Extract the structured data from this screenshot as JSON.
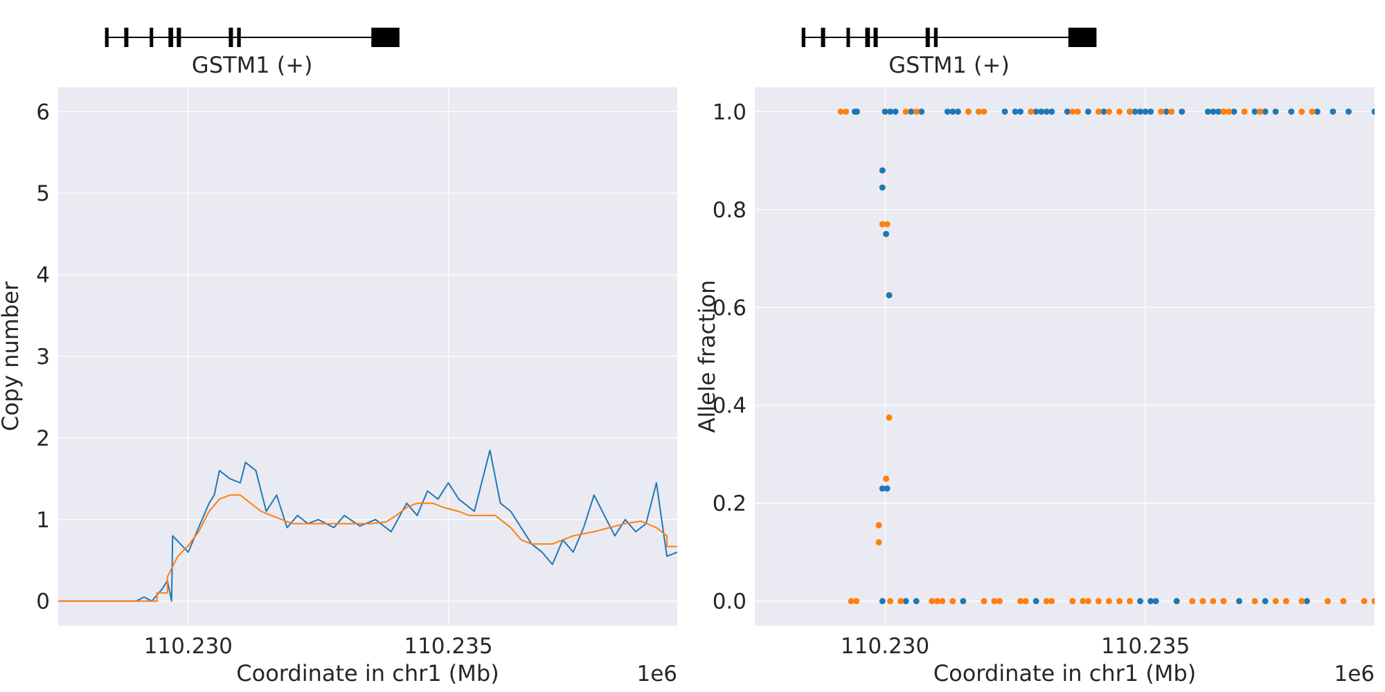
{
  "chart_data": [
    {
      "type": "line",
      "gene_track": {
        "label": "GSTM1 (+)",
        "exons": [
          [
            110.2284,
            110.22847
          ],
          [
            110.22877,
            110.22885
          ],
          [
            110.22926,
            110.22931
          ],
          [
            110.22962,
            110.22971
          ],
          [
            110.22978,
            110.22986
          ],
          [
            110.23078,
            110.23086
          ],
          [
            110.23094,
            110.23101
          ],
          [
            110.23352,
            110.23406
          ]
        ],
        "span": [
          110.2284,
          110.23406
        ]
      },
      "xlabel": "Coordinate in chr1 (Mb)",
      "ylabel": "Copy number",
      "offset_label": "1e6",
      "xlim": [
        110.2275,
        110.2394
      ],
      "ylim": [
        -0.3,
        6.3
      ],
      "xticks": [
        {
          "value": 110.23,
          "label": "110.230"
        },
        {
          "value": 110.235,
          "label": "110.235"
        }
      ],
      "yticks": [
        {
          "value": 0,
          "label": "0"
        },
        {
          "value": 1,
          "label": "1"
        },
        {
          "value": 2,
          "label": "2"
        },
        {
          "value": 3,
          "label": "3"
        },
        {
          "value": 4,
          "label": "4"
        },
        {
          "value": 5,
          "label": "5"
        },
        {
          "value": 6,
          "label": "6"
        }
      ],
      "grid": true,
      "series": [
        {
          "color": "#1f77b4",
          "points": [
            [
              110.2275,
              0
            ],
            [
              110.229,
              0
            ],
            [
              110.22915,
              0.05
            ],
            [
              110.2293,
              0
            ],
            [
              110.2295,
              0.15
            ],
            [
              110.2296,
              0.25
            ],
            [
              110.22968,
              0
            ],
            [
              110.2297,
              0.8
            ],
            [
              110.22985,
              0.7
            ],
            [
              110.23,
              0.6
            ],
            [
              110.2302,
              0.9
            ],
            [
              110.2304,
              1.2
            ],
            [
              110.2305,
              1.3
            ],
            [
              110.2306,
              1.6
            ],
            [
              110.2308,
              1.5
            ],
            [
              110.231,
              1.45
            ],
            [
              110.2311,
              1.7
            ],
            [
              110.2313,
              1.6
            ],
            [
              110.2315,
              1.1
            ],
            [
              110.2317,
              1.3
            ],
            [
              110.2319,
              0.9
            ],
            [
              110.2321,
              1.05
            ],
            [
              110.2323,
              0.95
            ],
            [
              110.2325,
              1.0
            ],
            [
              110.2328,
              0.9
            ],
            [
              110.233,
              1.05
            ],
            [
              110.2333,
              0.92
            ],
            [
              110.2336,
              1.0
            ],
            [
              110.2339,
              0.85
            ],
            [
              110.2342,
              1.2
            ],
            [
              110.2344,
              1.05
            ],
            [
              110.2346,
              1.35
            ],
            [
              110.2348,
              1.25
            ],
            [
              110.235,
              1.45
            ],
            [
              110.2352,
              1.25
            ],
            [
              110.2355,
              1.1
            ],
            [
              110.2357,
              1.6
            ],
            [
              110.2358,
              1.85
            ],
            [
              110.236,
              1.2
            ],
            [
              110.2362,
              1.1
            ],
            [
              110.2364,
              0.9
            ],
            [
              110.2366,
              0.7
            ],
            [
              110.2368,
              0.6
            ],
            [
              110.237,
              0.45
            ],
            [
              110.2372,
              0.75
            ],
            [
              110.2374,
              0.6
            ],
            [
              110.2376,
              0.9
            ],
            [
              110.2378,
              1.3
            ],
            [
              110.238,
              1.05
            ],
            [
              110.2382,
              0.8
            ],
            [
              110.2384,
              1.0
            ],
            [
              110.2386,
              0.85
            ],
            [
              110.2388,
              0.95
            ],
            [
              110.239,
              1.45
            ],
            [
              110.2392,
              0.55
            ],
            [
              110.2394,
              0.6
            ]
          ]
        },
        {
          "color": "#ff7f0e",
          "points": [
            [
              110.2275,
              0
            ],
            [
              110.2294,
              0
            ],
            [
              110.2294,
              0.1
            ],
            [
              110.2296,
              0.1
            ],
            [
              110.2296,
              0.3
            ],
            [
              110.2298,
              0.55
            ],
            [
              110.23,
              0.68
            ],
            [
              110.2302,
              0.85
            ],
            [
              110.2304,
              1.1
            ],
            [
              110.2306,
              1.25
            ],
            [
              110.2308,
              1.3
            ],
            [
              110.231,
              1.3
            ],
            [
              110.2312,
              1.2
            ],
            [
              110.2314,
              1.1
            ],
            [
              110.2316,
              1.05
            ],
            [
              110.2318,
              1.0
            ],
            [
              110.232,
              0.95
            ],
            [
              110.2335,
              0.95
            ],
            [
              110.2338,
              0.97
            ],
            [
              110.234,
              1.05
            ],
            [
              110.2342,
              1.15
            ],
            [
              110.2344,
              1.2
            ],
            [
              110.2347,
              1.2
            ],
            [
              110.2349,
              1.15
            ],
            [
              110.2352,
              1.1
            ],
            [
              110.2354,
              1.05
            ],
            [
              110.2359,
              1.05
            ],
            [
              110.2362,
              0.9
            ],
            [
              110.2364,
              0.75
            ],
            [
              110.2366,
              0.7
            ],
            [
              110.237,
              0.7
            ],
            [
              110.2372,
              0.75
            ],
            [
              110.2374,
              0.8
            ],
            [
              110.2378,
              0.85
            ],
            [
              110.2381,
              0.9
            ],
            [
              110.2384,
              0.95
            ],
            [
              110.2387,
              0.98
            ],
            [
              110.239,
              0.9
            ],
            [
              110.2392,
              0.8
            ],
            [
              110.2392,
              0.67
            ],
            [
              110.2394,
              0.67
            ]
          ]
        }
      ]
    },
    {
      "type": "scatter",
      "gene_track": {
        "label": "GSTM1 (+)",
        "exons": [
          [
            110.2284,
            110.22847
          ],
          [
            110.22877,
            110.22885
          ],
          [
            110.22926,
            110.22931
          ],
          [
            110.22962,
            110.22971
          ],
          [
            110.22978,
            110.22986
          ],
          [
            110.23078,
            110.23086
          ],
          [
            110.23094,
            110.23101
          ],
          [
            110.23352,
            110.23406
          ]
        ],
        "span": [
          110.2284,
          110.23406
        ]
      },
      "xlabel": "Coordinate in chr1 (Mb)",
      "ylabel": "Allele fraction",
      "offset_label": "1e6",
      "xlim": [
        110.2275,
        110.2394
      ],
      "ylim": [
        -0.05,
        1.05
      ],
      "xticks": [
        {
          "value": 110.23,
          "label": "110.230"
        },
        {
          "value": 110.235,
          "label": "110.235"
        }
      ],
      "yticks": [
        {
          "value": 0.0,
          "label": "0.0"
        },
        {
          "value": 0.2,
          "label": "0.2"
        },
        {
          "value": 0.4,
          "label": "0.4"
        },
        {
          "value": 0.6,
          "label": "0.6"
        },
        {
          "value": 0.8,
          "label": "0.8"
        },
        {
          "value": 1.0,
          "label": "1.0"
        }
      ],
      "grid": true,
      "series": [
        {
          "color": "#1f77b4",
          "points": [
            [
              110.22942,
              1
            ],
            [
              110.22946,
              1
            ],
            [
              110.23,
              1
            ],
            [
              110.2301,
              1
            ],
            [
              110.2302,
              1
            ],
            [
              110.2305,
              1
            ],
            [
              110.2307,
              1
            ],
            [
              110.2312,
              1
            ],
            [
              110.2313,
              1
            ],
            [
              110.2314,
              1
            ],
            [
              110.2316,
              1
            ],
            [
              110.2318,
              1
            ],
            [
              110.2323,
              1
            ],
            [
              110.2325,
              1
            ],
            [
              110.2326,
              1
            ],
            [
              110.2329,
              1
            ],
            [
              110.233,
              1
            ],
            [
              110.2331,
              1
            ],
            [
              110.2332,
              1
            ],
            [
              110.2335,
              1
            ],
            [
              110.2339,
              1
            ],
            [
              110.2342,
              1
            ],
            [
              110.2347,
              1
            ],
            [
              110.2348,
              1
            ],
            [
              110.2349,
              1
            ],
            [
              110.235,
              1
            ],
            [
              110.2351,
              1
            ],
            [
              110.2354,
              1
            ],
            [
              110.2357,
              1
            ],
            [
              110.2362,
              1
            ],
            [
              110.2363,
              1
            ],
            [
              110.2364,
              1
            ],
            [
              110.2365,
              1
            ],
            [
              110.2367,
              1
            ],
            [
              110.2371,
              1
            ],
            [
              110.2372,
              1
            ],
            [
              110.2373,
              1
            ],
            [
              110.2375,
              1
            ],
            [
              110.2378,
              1
            ],
            [
              110.2383,
              1
            ],
            [
              110.2386,
              1
            ],
            [
              110.2389,
              1
            ],
            [
              110.2394,
              1
            ],
            [
              110.22995,
              0.88
            ],
            [
              110.22995,
              0.845
            ],
            [
              110.23002,
              0.75
            ],
            [
              110.23008,
              0.625
            ],
            [
              110.22995,
              0.23
            ],
            [
              110.23004,
              0.23
            ],
            [
              110.22995,
              0
            ],
            [
              110.2304,
              0
            ],
            [
              110.2306,
              0
            ],
            [
              110.2315,
              0
            ],
            [
              110.2329,
              0
            ],
            [
              110.2349,
              0
            ],
            [
              110.2351,
              0
            ],
            [
              110.2352,
              0
            ],
            [
              110.2356,
              0
            ],
            [
              110.2368,
              0
            ],
            [
              110.2373,
              0
            ],
            [
              110.2381,
              0
            ]
          ]
        },
        {
          "color": "#ff7f0e",
          "points": [
            [
              110.22915,
              1
            ],
            [
              110.22925,
              1
            ],
            [
              110.2304,
              1
            ],
            [
              110.2306,
              1
            ],
            [
              110.2316,
              1
            ],
            [
              110.2318,
              1
            ],
            [
              110.2319,
              1
            ],
            [
              110.2328,
              1
            ],
            [
              110.2336,
              1
            ],
            [
              110.2337,
              1
            ],
            [
              110.2341,
              1
            ],
            [
              110.2343,
              1
            ],
            [
              110.2345,
              1
            ],
            [
              110.2347,
              1
            ],
            [
              110.2353,
              1
            ],
            [
              110.2355,
              1
            ],
            [
              110.2365,
              1
            ],
            [
              110.2366,
              1
            ],
            [
              110.2369,
              1
            ],
            [
              110.2372,
              1
            ],
            [
              110.238,
              1
            ],
            [
              110.2382,
              1
            ],
            [
              110.22995,
              0.77
            ],
            [
              110.23004,
              0.77
            ],
            [
              110.23008,
              0.375
            ],
            [
              110.23002,
              0.25
            ],
            [
              110.22988,
              0.155
            ],
            [
              110.22988,
              0.12
            ],
            [
              110.22935,
              0
            ],
            [
              110.22945,
              0
            ],
            [
              110.2301,
              0
            ],
            [
              110.2303,
              0
            ],
            [
              110.2309,
              0
            ],
            [
              110.231,
              0
            ],
            [
              110.2311,
              0
            ],
            [
              110.2313,
              0
            ],
            [
              110.2319,
              0
            ],
            [
              110.2321,
              0
            ],
            [
              110.2322,
              0
            ],
            [
              110.2326,
              0
            ],
            [
              110.2327,
              0
            ],
            [
              110.2331,
              0
            ],
            [
              110.2332,
              0
            ],
            [
              110.2336,
              0
            ],
            [
              110.2338,
              0
            ],
            [
              110.2339,
              0
            ],
            [
              110.2341,
              0
            ],
            [
              110.2343,
              0
            ],
            [
              110.2345,
              0
            ],
            [
              110.2347,
              0
            ],
            [
              110.2359,
              0
            ],
            [
              110.2361,
              0
            ],
            [
              110.2363,
              0
            ],
            [
              110.2365,
              0
            ],
            [
              110.2371,
              0
            ],
            [
              110.2375,
              0
            ],
            [
              110.2377,
              0
            ],
            [
              110.238,
              0
            ],
            [
              110.2385,
              0
            ],
            [
              110.2388,
              0
            ],
            [
              110.2392,
              0
            ],
            [
              110.2394,
              0
            ]
          ]
        }
      ]
    }
  ]
}
